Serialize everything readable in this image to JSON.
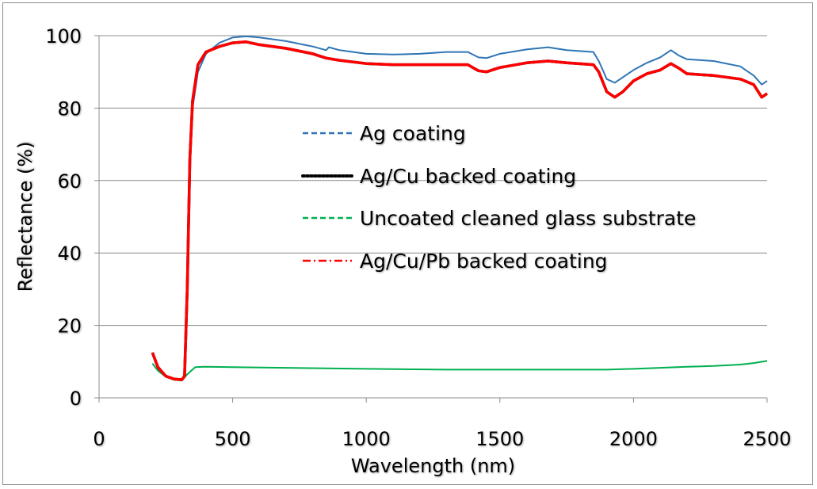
{
  "chart_data": {
    "type": "line",
    "xlabel": "Wavelength (nm)",
    "ylabel": "Reflectance (%)",
    "xlim": [
      0,
      2500
    ],
    "ylim": [
      0,
      100
    ],
    "xticks": [
      0,
      500,
      1000,
      1500,
      2000,
      2500
    ],
    "yticks": [
      0,
      20,
      40,
      60,
      80,
      100
    ],
    "grid": "horizontal",
    "legend_placement": "center",
    "series": [
      {
        "name": "Ag coating",
        "color": "#2e75b6",
        "dash": "dashed",
        "points": [
          [
            200,
            12
          ],
          [
            220,
            8
          ],
          [
            250,
            6
          ],
          [
            280,
            5.2
          ],
          [
            310,
            5
          ],
          [
            320,
            6
          ],
          [
            330,
            30
          ],
          [
            340,
            65
          ],
          [
            350,
            80
          ],
          [
            370,
            90
          ],
          [
            400,
            95
          ],
          [
            450,
            98
          ],
          [
            500,
            99.5
          ],
          [
            550,
            99.8
          ],
          [
            600,
            99.5
          ],
          [
            700,
            98.5
          ],
          [
            800,
            97
          ],
          [
            850,
            96
          ],
          [
            860,
            96.8
          ],
          [
            900,
            96
          ],
          [
            1000,
            95
          ],
          [
            1100,
            94.8
          ],
          [
            1200,
            95
          ],
          [
            1300,
            95.5
          ],
          [
            1380,
            95.5
          ],
          [
            1420,
            94
          ],
          [
            1450,
            93.8
          ],
          [
            1500,
            95
          ],
          [
            1600,
            96.2
          ],
          [
            1680,
            96.8
          ],
          [
            1750,
            96
          ],
          [
            1850,
            95.5
          ],
          [
            1870,
            93
          ],
          [
            1900,
            88
          ],
          [
            1930,
            87
          ],
          [
            1960,
            88.5
          ],
          [
            2000,
            90.5
          ],
          [
            2050,
            92.5
          ],
          [
            2100,
            94
          ],
          [
            2140,
            96
          ],
          [
            2170,
            94.5
          ],
          [
            2200,
            93.5
          ],
          [
            2300,
            93
          ],
          [
            2400,
            91.5
          ],
          [
            2450,
            89
          ],
          [
            2480,
            86.5
          ],
          [
            2500,
            87.5
          ]
        ]
      },
      {
        "name": "Ag/Cu backed coating",
        "color": "#000000",
        "dash": "dotted",
        "points": [
          [
            200,
            12.5
          ],
          [
            220,
            8.5
          ],
          [
            250,
            6
          ],
          [
            280,
            5.2
          ],
          [
            310,
            5
          ],
          [
            320,
            6
          ],
          [
            330,
            30
          ],
          [
            340,
            66
          ],
          [
            350,
            82
          ],
          [
            370,
            92
          ],
          [
            400,
            95.5
          ],
          [
            450,
            97
          ],
          [
            500,
            98
          ],
          [
            550,
            98.3
          ],
          [
            600,
            97.5
          ],
          [
            700,
            96.5
          ],
          [
            800,
            95
          ],
          [
            850,
            93.8
          ],
          [
            900,
            93.2
          ],
          [
            1000,
            92.3
          ],
          [
            1100,
            92
          ],
          [
            1200,
            92
          ],
          [
            1300,
            92
          ],
          [
            1380,
            92
          ],
          [
            1420,
            90.3
          ],
          [
            1450,
            90
          ],
          [
            1500,
            91.2
          ],
          [
            1600,
            92.5
          ],
          [
            1680,
            93
          ],
          [
            1750,
            92.5
          ],
          [
            1850,
            92
          ],
          [
            1870,
            90
          ],
          [
            1900,
            84.5
          ],
          [
            1930,
            83
          ],
          [
            1960,
            84.5
          ],
          [
            2000,
            87.5
          ],
          [
            2050,
            89.5
          ],
          [
            2100,
            90.5
          ],
          [
            2140,
            92.3
          ],
          [
            2170,
            91
          ],
          [
            2200,
            89.5
          ],
          [
            2300,
            89
          ],
          [
            2400,
            88
          ],
          [
            2450,
            86.5
          ],
          [
            2480,
            83
          ],
          [
            2500,
            84
          ]
        ]
      },
      {
        "name": "Uncoated cleaned glass substrate",
        "color": "#00b050",
        "dash": "dashed",
        "points": [
          [
            200,
            9.5
          ],
          [
            220,
            7.5
          ],
          [
            250,
            5.8
          ],
          [
            280,
            5
          ],
          [
            310,
            4.8
          ],
          [
            330,
            6.5
          ],
          [
            360,
            8.5
          ],
          [
            400,
            8.6
          ],
          [
            500,
            8.5
          ],
          [
            700,
            8.3
          ],
          [
            1000,
            8
          ],
          [
            1300,
            7.8
          ],
          [
            1500,
            7.8
          ],
          [
            1700,
            7.8
          ],
          [
            1900,
            7.8
          ],
          [
            2000,
            8
          ],
          [
            2100,
            8.3
          ],
          [
            2200,
            8.6
          ],
          [
            2300,
            8.8
          ],
          [
            2400,
            9.2
          ],
          [
            2450,
            9.6
          ],
          [
            2500,
            10.2
          ]
        ]
      },
      {
        "name": "Ag/Cu/Pb backed coating",
        "color": "#ff0000",
        "dash": "dash-dot",
        "points": [
          [
            200,
            12.5
          ],
          [
            220,
            8.5
          ],
          [
            250,
            6
          ],
          [
            280,
            5.2
          ],
          [
            310,
            5
          ],
          [
            320,
            6
          ],
          [
            330,
            30
          ],
          [
            340,
            66
          ],
          [
            350,
            82
          ],
          [
            370,
            92
          ],
          [
            400,
            95.5
          ],
          [
            450,
            97
          ],
          [
            500,
            98
          ],
          [
            550,
            98.3
          ],
          [
            600,
            97.5
          ],
          [
            700,
            96.5
          ],
          [
            800,
            95
          ],
          [
            850,
            93.8
          ],
          [
            900,
            93.2
          ],
          [
            1000,
            92.3
          ],
          [
            1100,
            92
          ],
          [
            1200,
            92
          ],
          [
            1300,
            92
          ],
          [
            1380,
            92
          ],
          [
            1420,
            90.3
          ],
          [
            1450,
            90
          ],
          [
            1500,
            91.2
          ],
          [
            1600,
            92.5
          ],
          [
            1680,
            93
          ],
          [
            1750,
            92.5
          ],
          [
            1850,
            92
          ],
          [
            1870,
            90
          ],
          [
            1900,
            84.5
          ],
          [
            1930,
            83
          ],
          [
            1960,
            84.5
          ],
          [
            2000,
            87.5
          ],
          [
            2050,
            89.5
          ],
          [
            2100,
            90.5
          ],
          [
            2140,
            92.3
          ],
          [
            2170,
            91
          ],
          [
            2200,
            89.5
          ],
          [
            2300,
            89
          ],
          [
            2400,
            88
          ],
          [
            2450,
            86.5
          ],
          [
            2480,
            83
          ],
          [
            2500,
            84
          ]
        ]
      }
    ]
  }
}
